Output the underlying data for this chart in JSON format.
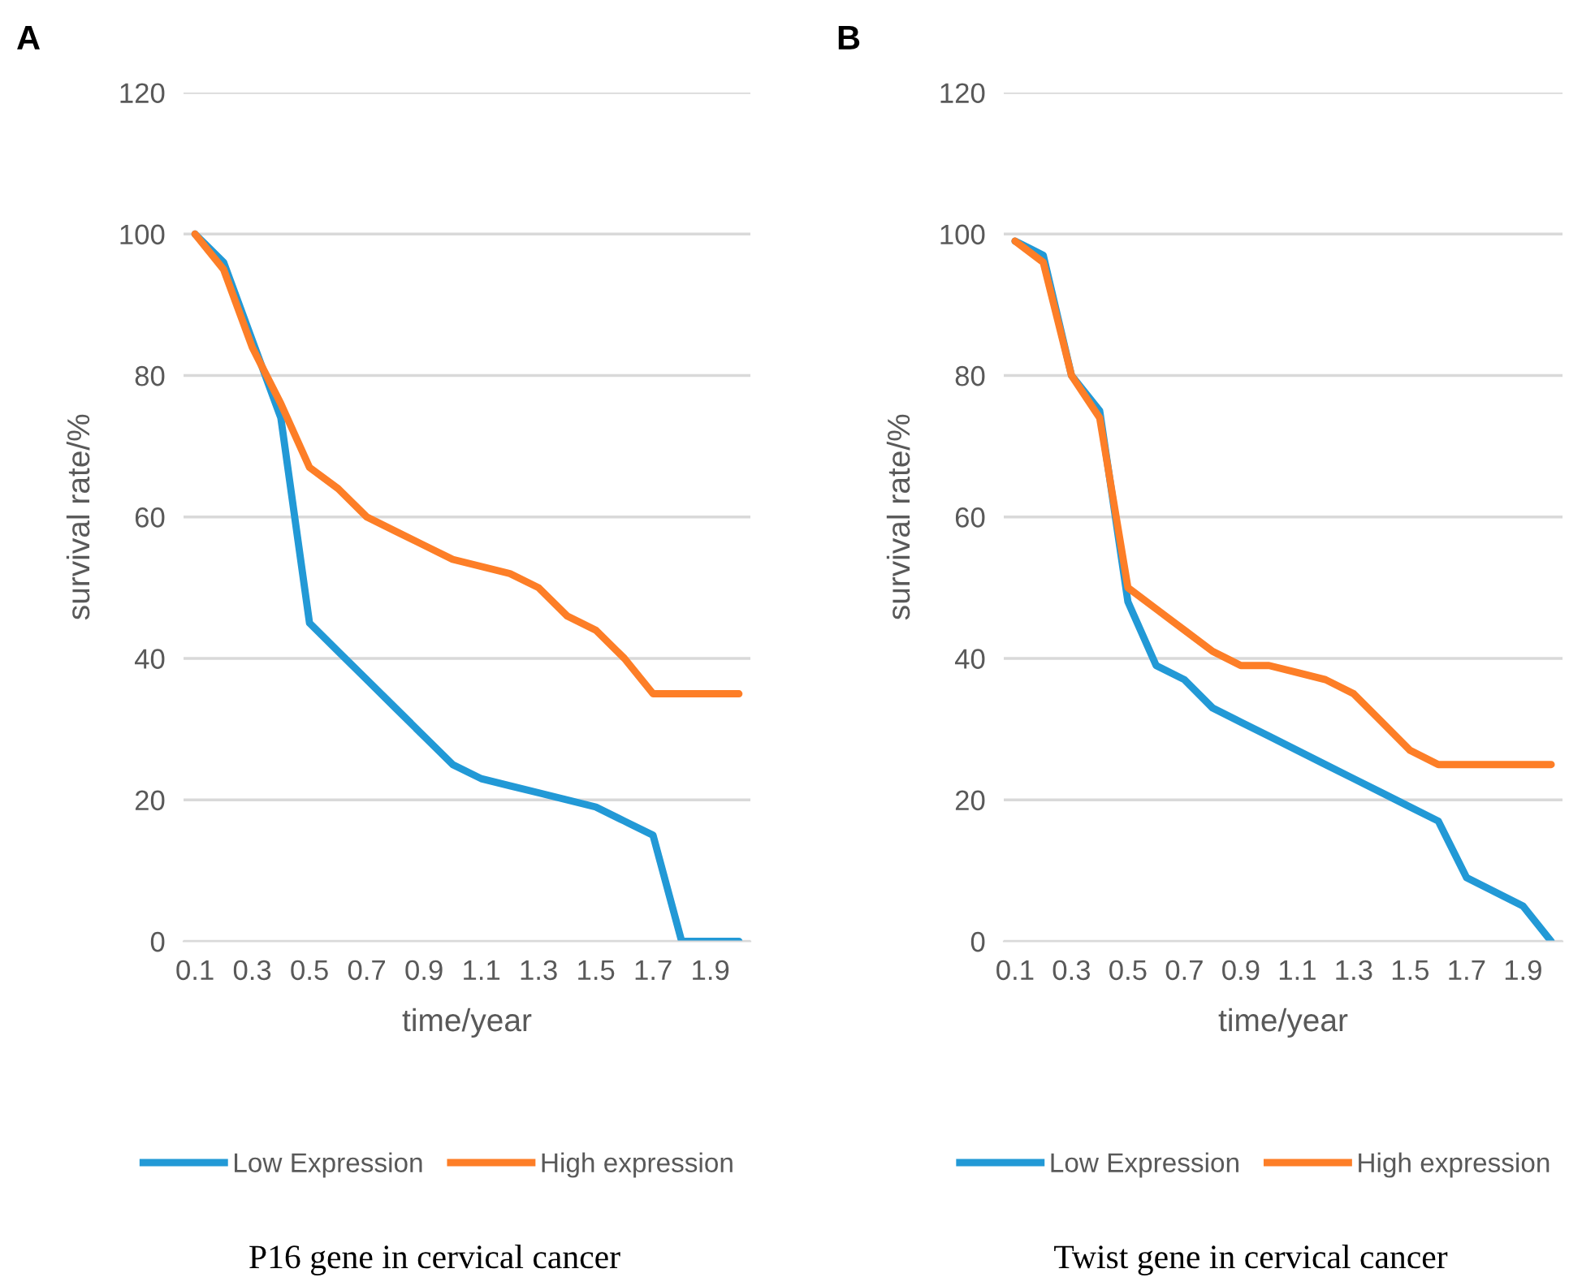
{
  "chart_data": [
    {
      "type": "line",
      "title": "P16 gene in cervical cancer",
      "annotations": [
        "A"
      ],
      "xlabel": "time/year",
      "ylabel": "survival rate/%",
      "categories": [
        "0.1",
        null,
        "0.3",
        null,
        "0.5",
        null,
        "0.7",
        null,
        "0.9",
        null,
        "1.1",
        null,
        "1.3",
        null,
        "1.5",
        null,
        "1.7",
        null,
        "1.9",
        null
      ],
      "series": [
        {
          "name": "Low Expression",
          "color": "#2299d6",
          "values": [
            100,
            96,
            85,
            74,
            45,
            41,
            37,
            33,
            29,
            25,
            23,
            22,
            21,
            20,
            19,
            17,
            15,
            0,
            0,
            0
          ]
        },
        {
          "name": "High expression",
          "color": "#fd7e27",
          "values": [
            100,
            95,
            84,
            76,
            67,
            64,
            60,
            58,
            56,
            54,
            53,
            52,
            50,
            46,
            44,
            40,
            35,
            35,
            35,
            35
          ]
        }
      ],
      "ylim": [
        0,
        120
      ],
      "yticks": [
        0,
        20,
        40,
        60,
        80,
        100,
        120
      ],
      "grid": "y",
      "legend": "bottom",
      "marker": "none",
      "line_style": "solid"
    },
    {
      "type": "line",
      "title": "Twist gene in cervical cancer",
      "annotations": [
        "B"
      ],
      "xlabel": "time/year",
      "ylabel": "survival rate/%",
      "categories": [
        "0.1",
        null,
        "0.3",
        null,
        "0.5",
        null,
        "0.7",
        null,
        "0.9",
        null,
        "1.1",
        null,
        "1.3",
        null,
        "1.5",
        null,
        "1.7",
        null,
        "1.9",
        null
      ],
      "series": [
        {
          "name": "Low Expression",
          "color": "#2299d6",
          "values": [
            99,
            97,
            80,
            75,
            48,
            39,
            37,
            33,
            31,
            29,
            27,
            25,
            23,
            21,
            19,
            17,
            9,
            7,
            5,
            0
          ]
        },
        {
          "name": "High expression",
          "color": "#fd7e27",
          "values": [
            99,
            96,
            80,
            74,
            50,
            47,
            44,
            41,
            39,
            39,
            38,
            37,
            35,
            31,
            27,
            25,
            25,
            25,
            25,
            25
          ]
        }
      ],
      "ylim": [
        0,
        120
      ],
      "yticks": [
        0,
        20,
        40,
        60,
        80,
        100,
        120
      ],
      "grid": "y",
      "legend": "bottom",
      "marker": "none",
      "line_style": "solid"
    }
  ]
}
